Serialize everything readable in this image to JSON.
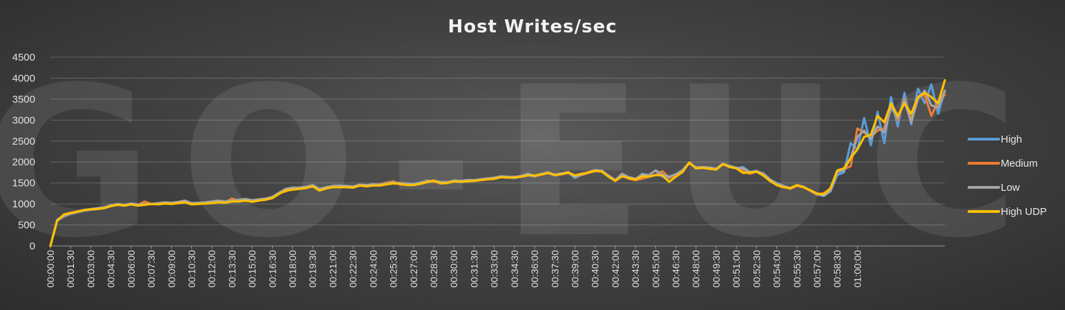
{
  "chart_data": {
    "type": "line",
    "title": "Host Writes/sec",
    "watermark": "GO-EUC",
    "xlabel": "",
    "ylabel": "",
    "ylim": [
      0,
      4500
    ],
    "yticks": [
      0,
      500,
      1000,
      1500,
      2000,
      2500,
      3000,
      3500,
      4000,
      4500
    ],
    "x_tick_labels": [
      "00:00:00",
      "00:01:30",
      "00:03:00",
      "00:04:30",
      "00:06:00",
      "00:07:30",
      "00:09:00",
      "00:10:30",
      "00:12:00",
      "00:13:30",
      "00:15:00",
      "00:16:30",
      "00:18:00",
      "00:19:30",
      "00:21:00",
      "00:22:30",
      "00:24:00",
      "00:25:30",
      "00:27:00",
      "00:28:30",
      "00:30:00",
      "00:31:30",
      "00:33:00",
      "00:34:30",
      "00:36:00",
      "00:37:30",
      "00:39:00",
      "00:40:30",
      "00:42:00",
      "00:43:30",
      "00:45:00",
      "00:46:30",
      "00:48:00",
      "00:49:30",
      "00:51:00",
      "00:52:30",
      "00:54:00",
      "00:55:30",
      "00:57:00",
      "00:58:30",
      "01:00:00"
    ],
    "interval_seconds": 30,
    "grid": true,
    "legend_position": "right",
    "series": [
      {
        "name": "High",
        "color": "#5b9bd5",
        "values": [
          0,
          600,
          700,
          760,
          800,
          840,
          860,
          880,
          900,
          950,
          980,
          960,
          990,
          970,
          980,
          1000,
          1000,
          1020,
          1010,
          1030,
          1060,
          1000,
          1010,
          1020,
          1050,
          1070,
          1050,
          1060,
          1080,
          1100,
          1080,
          1100,
          1110,
          1150,
          1250,
          1350,
          1380,
          1370,
          1390,
          1420,
          1340,
          1380,
          1410,
          1420,
          1430,
          1410,
          1450,
          1440,
          1460,
          1450,
          1480,
          1500,
          1490,
          1480,
          1470,
          1500,
          1530,
          1540,
          1520,
          1510,
          1550,
          1540,
          1560,
          1560,
          1580,
          1600,
          1620,
          1650,
          1640,
          1620,
          1660,
          1700,
          1650,
          1720,
          1740,
          1680,
          1720,
          1750,
          1620,
          1700,
          1750,
          1800,
          1790,
          1650,
          1550,
          1700,
          1620,
          1580,
          1720,
          1680,
          1800,
          1650,
          1620,
          1700,
          1800,
          1990,
          1850,
          1870,
          1860,
          1830,
          1960,
          1900,
          1850,
          1880,
          1760,
          1790,
          1680,
          1570,
          1500,
          1430,
          1380,
          1440,
          1400,
          1320,
          1230,
          1190,
          1300,
          1690,
          1750,
          2450,
          2300,
          3050,
          2400,
          3200,
          2450,
          3550,
          2850,
          3650,
          2900,
          3750,
          3400,
          3850,
          3150,
          3700
        ]
      },
      {
        "name": "Medium",
        "color": "#ed7d31",
        "values": [
          0,
          610,
          720,
          770,
          810,
          850,
          870,
          890,
          910,
          960,
          990,
          970,
          1000,
          980,
          1060,
          1000,
          1010,
          1030,
          1020,
          1040,
          1050,
          1010,
          1020,
          1030,
          1040,
          1060,
          1040,
          1130,
          1070,
          1090,
          1070,
          1090,
          1120,
          1160,
          1260,
          1300,
          1360,
          1380,
          1400,
          1440,
          1350,
          1390,
          1420,
          1410,
          1420,
          1400,
          1440,
          1430,
          1450,
          1470,
          1510,
          1540,
          1460,
          1470,
          1460,
          1490,
          1560,
          1530,
          1510,
          1500,
          1540,
          1550,
          1550,
          1560,
          1570,
          1590,
          1610,
          1640,
          1630,
          1650,
          1650,
          1710,
          1660,
          1700,
          1760,
          1690,
          1710,
          1740,
          1660,
          1690,
          1740,
          1780,
          1800,
          1660,
          1560,
          1680,
          1600,
          1570,
          1600,
          1650,
          1690,
          1780,
          1630,
          1680,
          1790,
          1970,
          1860,
          1880,
          1850,
          1820,
          1950,
          1890,
          1860,
          1800,
          1720,
          1770,
          1700,
          1580,
          1480,
          1420,
          1360,
          1430,
          1400,
          1310,
          1220,
          1260,
          1350,
          1780,
          1830,
          1900,
          2800,
          2700,
          2600,
          2750,
          2800,
          3400,
          3000,
          3500,
          3000,
          3550,
          3600,
          3100,
          3450,
          3600
        ]
      },
      {
        "name": "Low",
        "color": "#a5a5a5",
        "values": [
          0,
          620,
          730,
          780,
          820,
          860,
          880,
          900,
          920,
          970,
          1000,
          980,
          1010,
          990,
          1000,
          1000,
          1020,
          1040,
          1030,
          1050,
          1080,
          1020,
          1030,
          1040,
          1060,
          1080,
          1060,
          1080,
          1100,
          1120,
          1090,
          1110,
          1130,
          1170,
          1270,
          1360,
          1390,
          1390,
          1410,
          1450,
          1360,
          1400,
          1430,
          1440,
          1430,
          1420,
          1460,
          1450,
          1470,
          1460,
          1490,
          1510,
          1500,
          1490,
          1480,
          1510,
          1550,
          1550,
          1530,
          1520,
          1560,
          1550,
          1570,
          1570,
          1590,
          1610,
          1630,
          1660,
          1650,
          1640,
          1670,
          1720,
          1670,
          1720,
          1750,
          1700,
          1730,
          1760,
          1650,
          1700,
          1760,
          1810,
          1790,
          1680,
          1570,
          1720,
          1640,
          1600,
          1700,
          1690,
          1800,
          1700,
          1650,
          1710,
          1810,
          1980,
          1870,
          1880,
          1870,
          1840,
          1960,
          1910,
          1860,
          1850,
          1760,
          1780,
          1730,
          1590,
          1490,
          1430,
          1370,
          1450,
          1410,
          1320,
          1230,
          1200,
          1320,
          1760,
          1800,
          2100,
          2600,
          2750,
          2550,
          2850,
          2700,
          3300,
          3050,
          3450,
          2950,
          3500,
          3700,
          3350,
          3300,
          3700
        ]
      },
      {
        "name": "High UDP",
        "color": "#ffc000",
        "values": [
          0,
          600,
          750,
          790,
          820,
          850,
          870,
          880,
          900,
          950,
          980,
          960,
          990,
          960,
          980,
          1000,
          990,
          1010,
          1000,
          1020,
          1040,
          990,
          1000,
          1010,
          1020,
          1040,
          1030,
          1060,
          1060,
          1080,
          1050,
          1080,
          1100,
          1140,
          1240,
          1320,
          1340,
          1360,
          1380,
          1420,
          1320,
          1370,
          1400,
          1400,
          1400,
          1390,
          1440,
          1420,
          1440,
          1440,
          1470,
          1490,
          1480,
          1450,
          1450,
          1480,
          1520,
          1560,
          1490,
          1500,
          1540,
          1530,
          1540,
          1550,
          1570,
          1590,
          1600,
          1640,
          1630,
          1630,
          1650,
          1680,
          1680,
          1700,
          1740,
          1690,
          1710,
          1750,
          1680,
          1720,
          1750,
          1790,
          1770,
          1650,
          1550,
          1660,
          1620,
          1580,
          1660,
          1650,
          1690,
          1680,
          1530,
          1650,
          1760,
          1990,
          1850,
          1860,
          1840,
          1820,
          1950,
          1880,
          1850,
          1740,
          1750,
          1770,
          1680,
          1550,
          1450,
          1400,
          1380,
          1450,
          1400,
          1330,
          1250,
          1230,
          1380,
          1800,
          1850,
          2100,
          2300,
          2600,
          2650,
          3100,
          2950,
          3400,
          3100,
          3400,
          3150,
          3550,
          3650,
          3550,
          3400,
          3950
        ]
      }
    ]
  }
}
